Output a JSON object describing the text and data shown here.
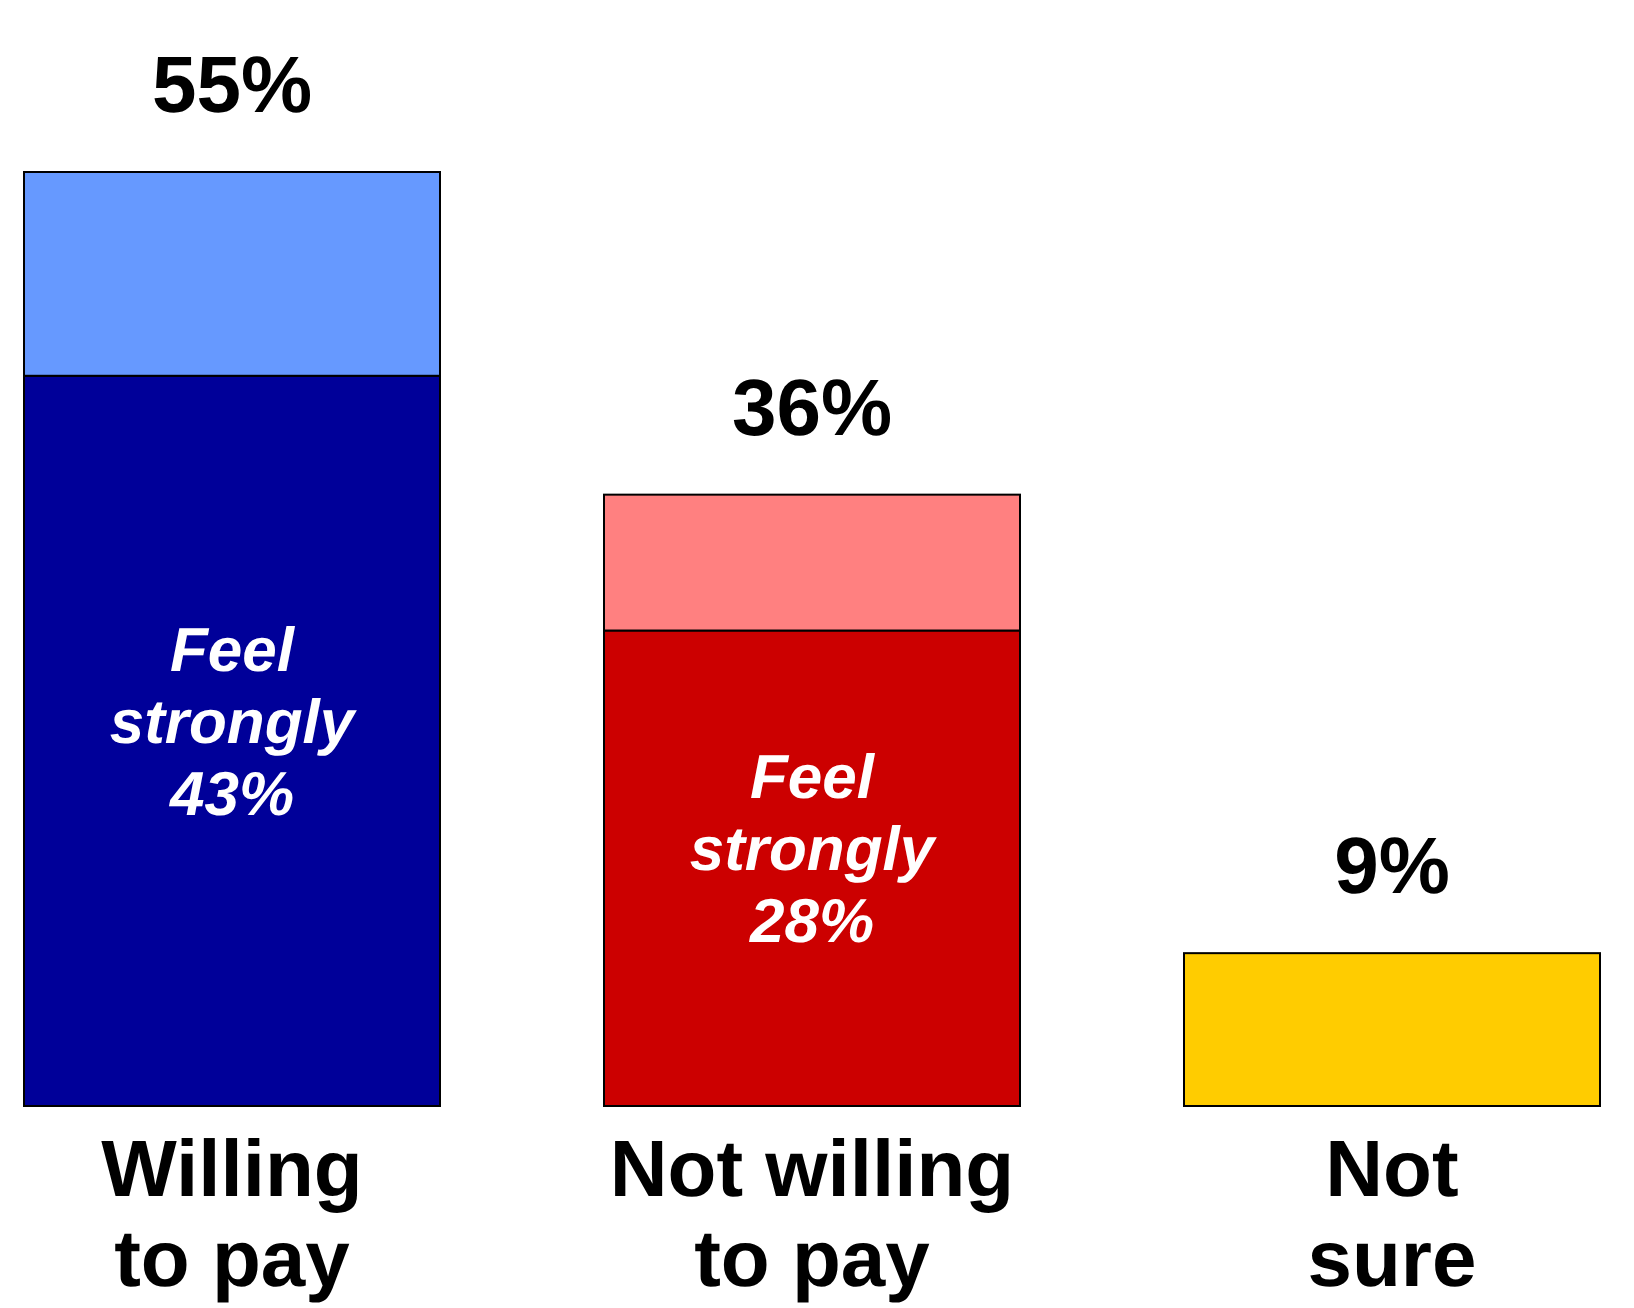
{
  "chart_data": {
    "type": "bar",
    "stacked": true,
    "categories": [
      "Willing\nto pay",
      "Not willing\nto pay",
      "Not\nsure"
    ],
    "series": [
      {
        "colors": [
          "#000099",
          "#cc0000",
          null
        ],
        "values": [
          43,
          28,
          null
        ],
        "value_labels": [
          "Feel\nstrongly\n43%",
          "Feel\nstrongly\n28%",
          null
        ]
      },
      {
        "colors": [
          "#6699ff",
          "#ff8080",
          "#ffcc00"
        ],
        "values": [
          12,
          8,
          9
        ]
      }
    ],
    "totals": [
      "55%",
      "36%",
      "9%"
    ]
  }
}
